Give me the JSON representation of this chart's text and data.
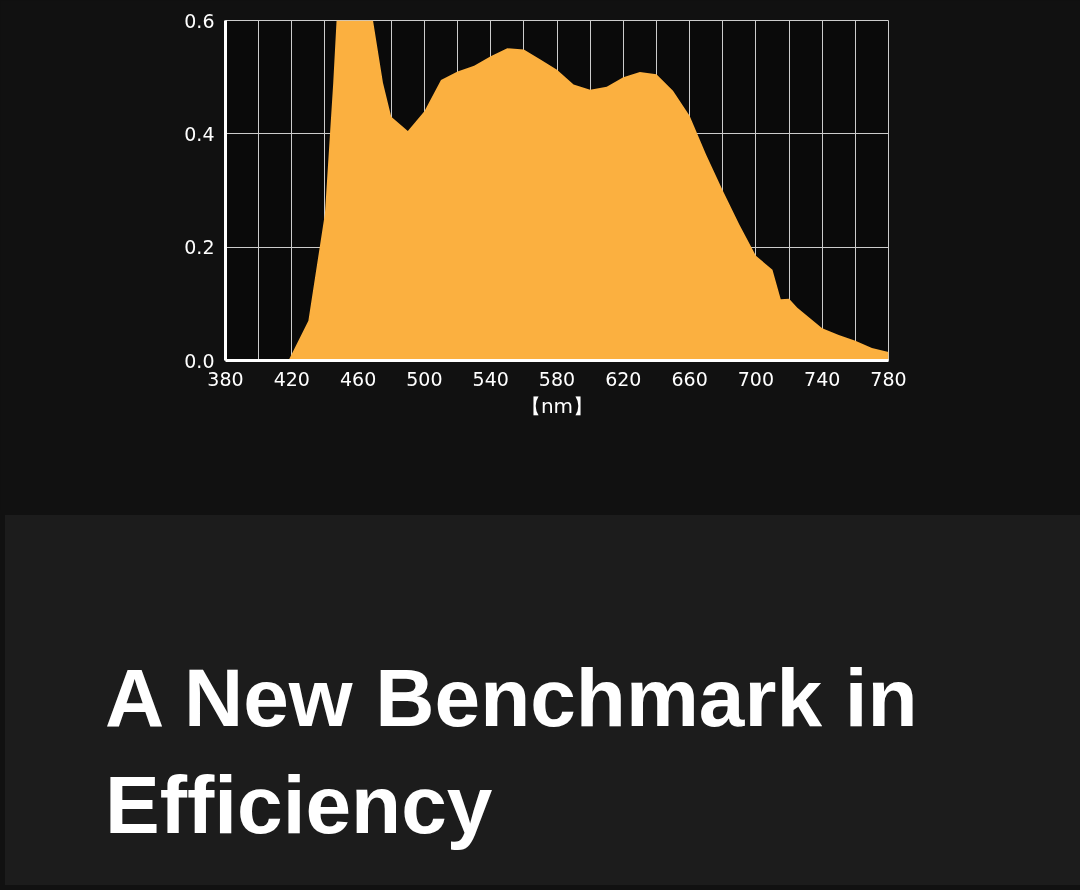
{
  "chart_data": {
    "type": "area",
    "title": "A New Benchmark in Efficiency",
    "xlabel": "【nm】",
    "x": [
      380,
      418,
      430,
      440,
      445,
      447,
      469,
      475,
      480,
      490,
      500,
      510,
      520,
      530,
      540,
      550,
      560,
      570,
      580,
      590,
      600,
      610,
      620,
      630,
      640,
      650,
      660,
      670,
      680,
      690,
      700,
      710,
      715,
      720,
      725,
      740,
      750,
      760,
      770,
      780
    ],
    "series": [
      {
        "color": "#fbb040",
        "values": [
          0,
          0,
          0.07,
          0.26,
          0.49,
          0.6,
          0.6,
          0.49,
          0.43,
          0.405,
          0.44,
          0.495,
          0.51,
          0.52,
          0.537,
          0.551,
          0.549,
          0.531,
          0.513,
          0.487,
          0.478,
          0.483,
          0.5,
          0.509,
          0.505,
          0.476,
          0.432,
          0.363,
          0.3,
          0.24,
          0.185,
          0.16,
          0.108,
          0.109,
          0.093,
          0.057,
          0.045,
          0.035,
          0.022,
          0.015
        ]
      }
    ],
    "xlim": [
      380,
      780
    ],
    "ylim": [
      0,
      0.6
    ],
    "xticks": [
      380,
      {
        "value": 400,
        "label": null
      },
      420,
      {
        "value": 440,
        "label": null
      },
      460,
      {
        "value": 480,
        "label": null
      },
      500,
      {
        "value": 520,
        "label": null
      },
      540,
      {
        "value": 560,
        "label": null
      },
      580,
      {
        "value": 600,
        "label": null
      },
      620,
      {
        "value": 640,
        "label": null
      },
      660,
      {
        "value": 680,
        "label": null
      },
      700,
      {
        "value": 720,
        "label": null
      },
      740,
      {
        "value": 760,
        "label": null
      },
      780
    ],
    "yticks": [
      {
        "value": 0,
        "label": "0.0"
      },
      0.2,
      0.4,
      0.6
    ],
    "grid": true
  }
}
